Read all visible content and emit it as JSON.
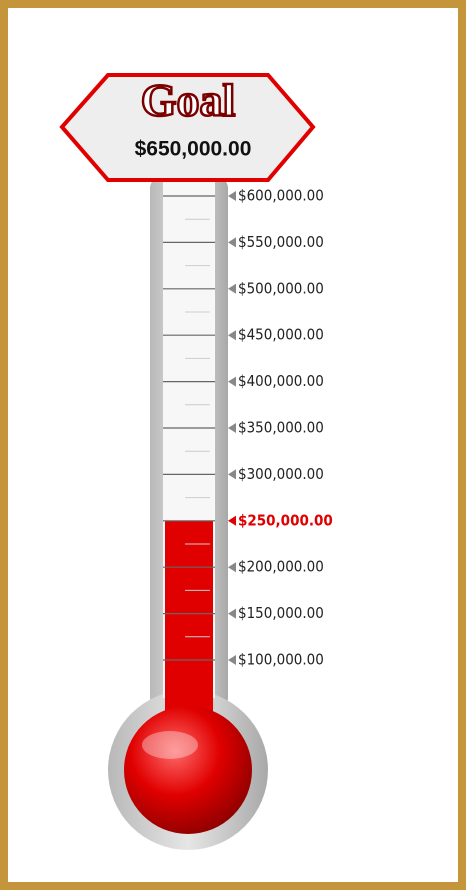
{
  "chart_data": {
    "type": "thermometer",
    "title": "Goal",
    "goal": {
      "value": 650000,
      "label": "$650,000.00"
    },
    "values": [
      250000
    ],
    "value_labels": [
      "$250,000.00"
    ],
    "color": "#e00000",
    "ylim": [
      100000,
      600000
    ],
    "yticks": [
      {
        "value": 600000,
        "label": "$600,000.00"
      },
      {
        "value": 550000,
        "label": "$550,000.00"
      },
      {
        "value": 500000,
        "label": "$500,000.00"
      },
      {
        "value": 450000,
        "label": "$450,000.00"
      },
      {
        "value": 400000,
        "label": "$400,000.00"
      },
      {
        "value": 350000,
        "label": "$350,000.00"
      },
      {
        "value": 300000,
        "label": "$300,000.00"
      },
      {
        "value": 250000,
        "label": "$250,000.00"
      },
      {
        "value": 200000,
        "label": "$200,000.00"
      },
      {
        "value": 150000,
        "label": "$150,000.00"
      },
      {
        "value": 100000,
        "label": "$100,000.00"
      }
    ]
  }
}
